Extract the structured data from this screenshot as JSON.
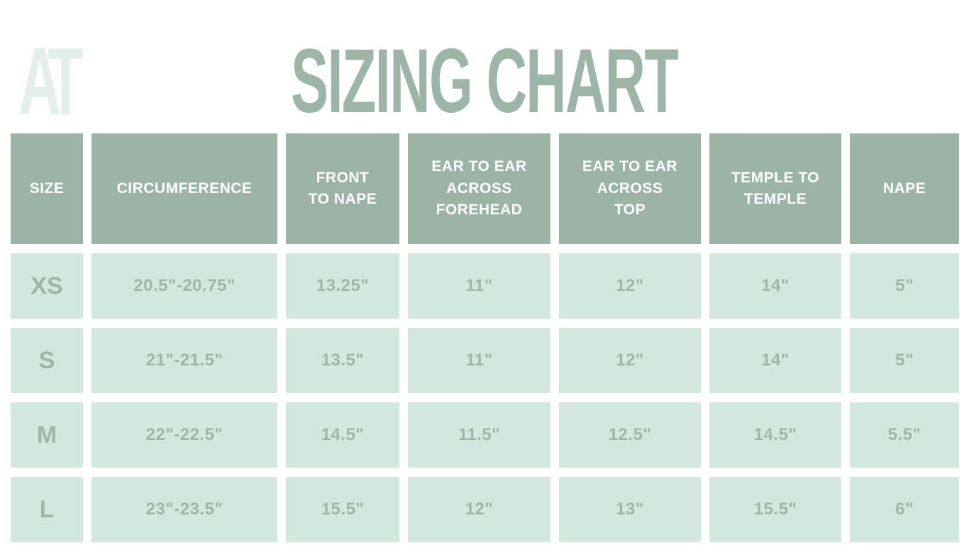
{
  "logo": {
    "text": "AT"
  },
  "title": "SIZING CHART",
  "colors": {
    "header_bg": "#9cb4a6",
    "cell_bg": "#d3e8dd",
    "cell_text": "#9db6a7",
    "title_text": "#9cb5a6",
    "logo_text": "#e3efe9",
    "header_text": "#ffffff",
    "page_bg": "#ffffff"
  },
  "chart_data": {
    "type": "table",
    "title": "SIZING CHART",
    "columns": [
      "SIZE",
      "CIRCUMFERENCE",
      "FRONT\nTO NAPE",
      "EAR TO EAR\nACROSS\nFOREHEAD",
      "EAR TO EAR\nACROSS\nTOP",
      "TEMPLE TO\nTEMPLE",
      "NAPE"
    ],
    "rows": [
      [
        "XS",
        "20.5\"-20.75\"",
        "13.25\"",
        "11\"",
        "12\"",
        "14\"",
        "5\""
      ],
      [
        "S",
        "21\"-21.5\"",
        "13.5\"",
        "11\"",
        "12\"",
        "14\"",
        "5\""
      ],
      [
        "M",
        "22\"-22.5\"",
        "14.5\"",
        "11.5\"",
        "12.5\"",
        "14.5\"",
        "5.5\""
      ],
      [
        "L",
        "23\"-23.5\"",
        "15.5\"",
        "12\"",
        "13\"",
        "15.5\"",
        "6\""
      ]
    ]
  }
}
